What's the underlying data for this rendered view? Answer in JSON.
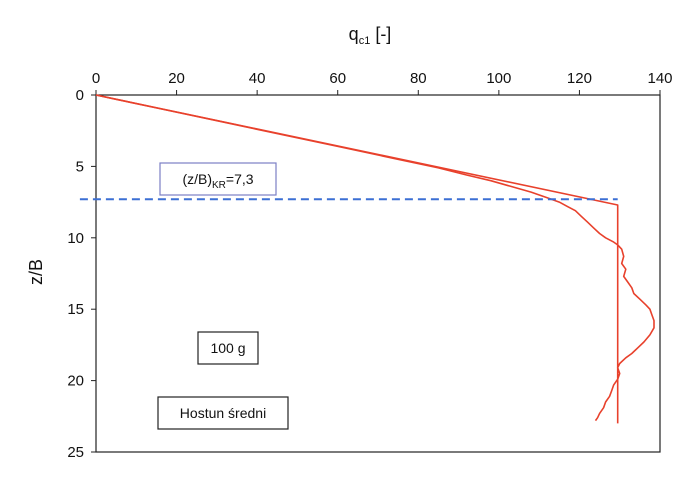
{
  "chart_data": {
    "type": "line",
    "xlabel": {
      "main": "q",
      "sub": "c1",
      "suffix": " [-]"
    },
    "ylabel": "z/B",
    "xlim": [
      0,
      140
    ],
    "ylim": [
      0,
      25
    ],
    "y_inverted": true,
    "x_axis_position": "top",
    "x_ticks": [
      "0",
      "20",
      "40",
      "60",
      "80",
      "100",
      "120",
      "140"
    ],
    "y_ticks": [
      "0",
      "5",
      "10",
      "15",
      "20",
      "25"
    ],
    "grid": false,
    "series": [
      {
        "color": "#e8412c",
        "style": "solid",
        "points": [
          [
            0,
            0
          ],
          [
            5,
            0.3
          ],
          [
            15,
            0.9
          ],
          [
            30,
            1.8
          ],
          [
            45,
            2.7
          ],
          [
            60,
            3.6
          ],
          [
            75,
            4.5
          ],
          [
            85,
            5.1
          ],
          [
            92,
            5.6
          ],
          [
            98,
            6.0
          ],
          [
            103,
            6.4
          ],
          [
            108,
            6.8
          ],
          [
            112,
            7.2
          ],
          [
            115,
            7.5
          ],
          [
            117,
            7.8
          ],
          [
            119,
            8.1
          ],
          [
            120.5,
            8.5
          ],
          [
            122,
            8.9
          ],
          [
            123.5,
            9.3
          ],
          [
            125,
            9.7
          ],
          [
            126.5,
            10.0
          ],
          [
            128.5,
            10.3
          ],
          [
            129.5,
            10.5
          ],
          [
            130.5,
            10.8
          ],
          [
            131,
            11.3
          ],
          [
            130.5,
            11.8
          ],
          [
            131.5,
            12.2
          ],
          [
            131,
            12.7
          ],
          [
            132,
            13.1
          ],
          [
            133,
            13.5
          ],
          [
            133.5,
            13.9
          ],
          [
            135,
            14.3
          ],
          [
            136.5,
            14.7
          ],
          [
            137.5,
            15.0
          ],
          [
            138,
            15.4
          ],
          [
            138.5,
            15.8
          ],
          [
            138.5,
            16.3
          ],
          [
            137.5,
            16.8
          ],
          [
            136,
            17.3
          ],
          [
            134.5,
            17.7
          ],
          [
            133,
            18.1
          ],
          [
            131.5,
            18.4
          ],
          [
            130,
            18.8
          ],
          [
            129.5,
            19.1
          ],
          [
            130,
            19.5
          ],
          [
            129.5,
            19.9
          ],
          [
            128.5,
            20.3
          ],
          [
            128,
            20.7
          ],
          [
            127.5,
            21.1
          ],
          [
            126.5,
            21.5
          ],
          [
            126,
            21.9
          ],
          [
            125,
            22.3
          ],
          [
            124.5,
            22.6
          ],
          [
            124,
            22.8
          ]
        ]
      },
      {
        "color": "#e8412c",
        "style": "solid",
        "points": [
          [
            0,
            0
          ],
          [
            129.5,
            7.7
          ],
          [
            129.5,
            23.0
          ]
        ]
      },
      {
        "color": "#3b6fd4",
        "style": "dashed",
        "points": [
          [
            -4,
            7.3
          ],
          [
            129.5,
            7.3
          ]
        ]
      }
    ],
    "annotations": [
      {
        "label_main": "(z/B)",
        "label_sub": "KR",
        "label_suffix": "=7,3",
        "color": "#5b5ea6"
      },
      {
        "label": "100 g",
        "color": "#222222"
      },
      {
        "label": "Hostun średni",
        "color": "#222222"
      }
    ]
  }
}
